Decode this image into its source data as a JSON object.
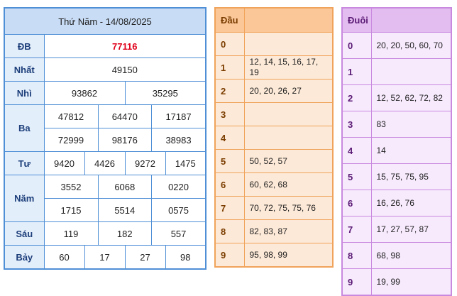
{
  "results": {
    "title": "Thứ Năm - 14/08/2025",
    "rows": {
      "db": {
        "label": "ĐB",
        "values": [
          "77116"
        ]
      },
      "nhat": {
        "label": "Nhất",
        "values": [
          "49150"
        ]
      },
      "nhi": {
        "label": "Nhì",
        "values": [
          "93862",
          "35295"
        ]
      },
      "ba": {
        "label": "Ba",
        "values": [
          "47812",
          "64470",
          "17187",
          "72999",
          "98176",
          "38983"
        ]
      },
      "tu": {
        "label": "Tư",
        "values": [
          "9420",
          "4426",
          "9272",
          "1475"
        ]
      },
      "nam": {
        "label": "Năm",
        "values": [
          "3552",
          "6068",
          "0220",
          "1715",
          "5514",
          "0575"
        ]
      },
      "sau": {
        "label": "Sáu",
        "values": [
          "119",
          "182",
          "557"
        ]
      },
      "bay": {
        "label": "Bảy",
        "values": [
          "60",
          "17",
          "27",
          "98"
        ]
      }
    },
    "special_color": "#e0001a"
  },
  "dau": {
    "header": "Đầu",
    "rows": [
      {
        "key": "0",
        "vals": ""
      },
      {
        "key": "1",
        "vals": "12, 14, 15, 16, 17, 19"
      },
      {
        "key": "2",
        "vals": "20, 20, 26, 27"
      },
      {
        "key": "3",
        "vals": ""
      },
      {
        "key": "4",
        "vals": ""
      },
      {
        "key": "5",
        "vals": "50, 52, 57"
      },
      {
        "key": "6",
        "vals": "60, 62, 68"
      },
      {
        "key": "7",
        "vals": "70, 72, 75, 75, 76"
      },
      {
        "key": "8",
        "vals": "82, 83, 87"
      },
      {
        "key": "9",
        "vals": "95, 98, 99"
      }
    ]
  },
  "duoi": {
    "header": "Đuôi",
    "rows": [
      {
        "key": "0",
        "vals": "20, 20, 50, 60, 70"
      },
      {
        "key": "1",
        "vals": ""
      },
      {
        "key": "2",
        "vals": "12, 52, 62, 72, 82"
      },
      {
        "key": "3",
        "vals": "83"
      },
      {
        "key": "4",
        "vals": "14"
      },
      {
        "key": "5",
        "vals": "15, 75, 75, 95"
      },
      {
        "key": "6",
        "vals": "16, 26, 76"
      },
      {
        "key": "7",
        "vals": "17, 27, 57, 87"
      },
      {
        "key": "8",
        "vals": "68, 98"
      },
      {
        "key": "9",
        "vals": "19, 99"
      }
    ]
  }
}
